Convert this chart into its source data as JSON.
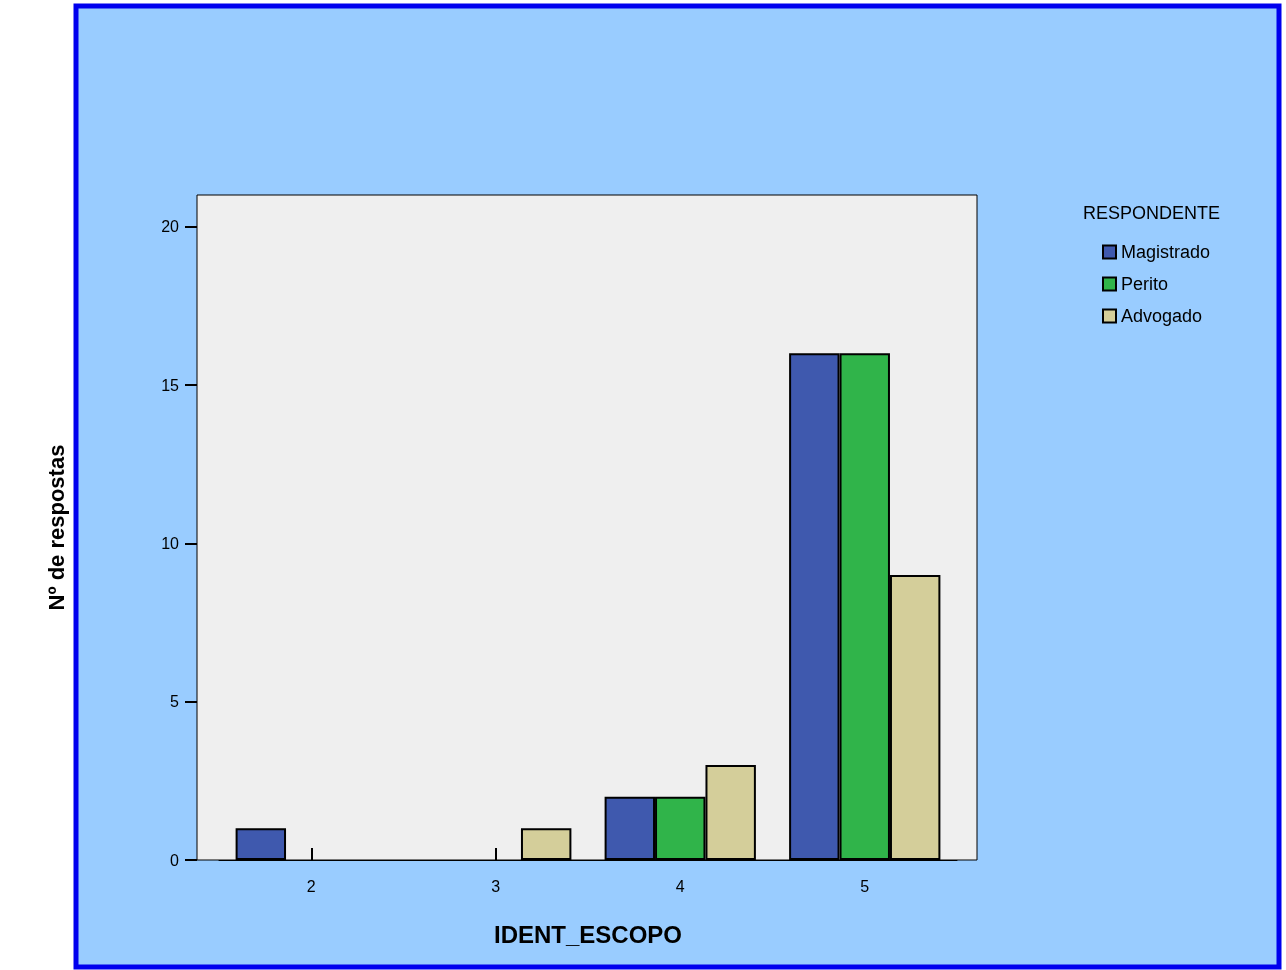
{
  "chart_data": {
    "type": "bar",
    "xlabel": "IDENT_ESCOPO",
    "ylabel": "Nº de respostas",
    "legend_title": "RESPONDENTE",
    "categories": [
      "2",
      "3",
      "4",
      "5"
    ],
    "series": [
      {
        "name": "Magistrado",
        "color": "#3f59ae",
        "values": [
          1,
          0,
          2,
          16
        ]
      },
      {
        "name": "Perito",
        "color": "#30b44a",
        "values": [
          0,
          0,
          2,
          16
        ]
      },
      {
        "name": "Advogado",
        "color": "#d4ce9a",
        "values": [
          0,
          1,
          3,
          9
        ]
      }
    ],
    "ylim": [
      0,
      21
    ],
    "yticks": [
      0,
      5,
      10,
      15,
      20
    ],
    "grid": false,
    "legend": "top right"
  }
}
